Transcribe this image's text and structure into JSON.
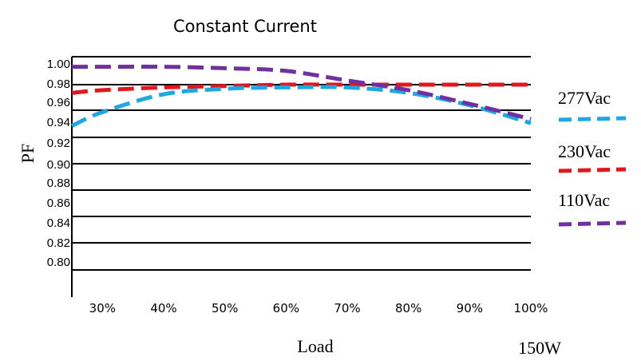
{
  "chart_data": {
    "type": "line",
    "title": "Constant Current",
    "xlabel": "Load",
    "ylabel": "PF",
    "note": "150W",
    "x_tick_labels": [
      "30%",
      "40%",
      "50%",
      "60%",
      "70%",
      "80%",
      "90%",
      "100%"
    ],
    "y_tick_labels": [
      "1.00",
      "0.98",
      "0.96",
      "0.94",
      "0.92",
      "0.90",
      "0.88",
      "0.86",
      "0.84",
      "0.82",
      "0.80"
    ],
    "x": [
      25,
      30,
      40,
      50,
      60,
      70,
      80,
      90,
      100
    ],
    "series": [
      {
        "name": "277Vac",
        "color": "#1ea7e1",
        "dash": "dashed",
        "values": [
          0.95,
          0.96,
          0.973,
          0.977,
          0.978,
          0.978,
          0.974,
          0.965,
          0.952
        ]
      },
      {
        "name": "230Vac",
        "color": "#e3171b",
        "dash": "dashed",
        "values": [
          0.974,
          0.976,
          0.978,
          0.979,
          0.98,
          0.98,
          0.98,
          0.98,
          0.98
        ]
      },
      {
        "name": "110Vac",
        "color": "#7030a0",
        "dash": "dashed",
        "values": [
          0.993,
          0.993,
          0.993,
          0.992,
          0.99,
          0.983,
          0.976,
          0.966,
          0.955
        ]
      }
    ],
    "grid": true,
    "legend_position": "right"
  }
}
